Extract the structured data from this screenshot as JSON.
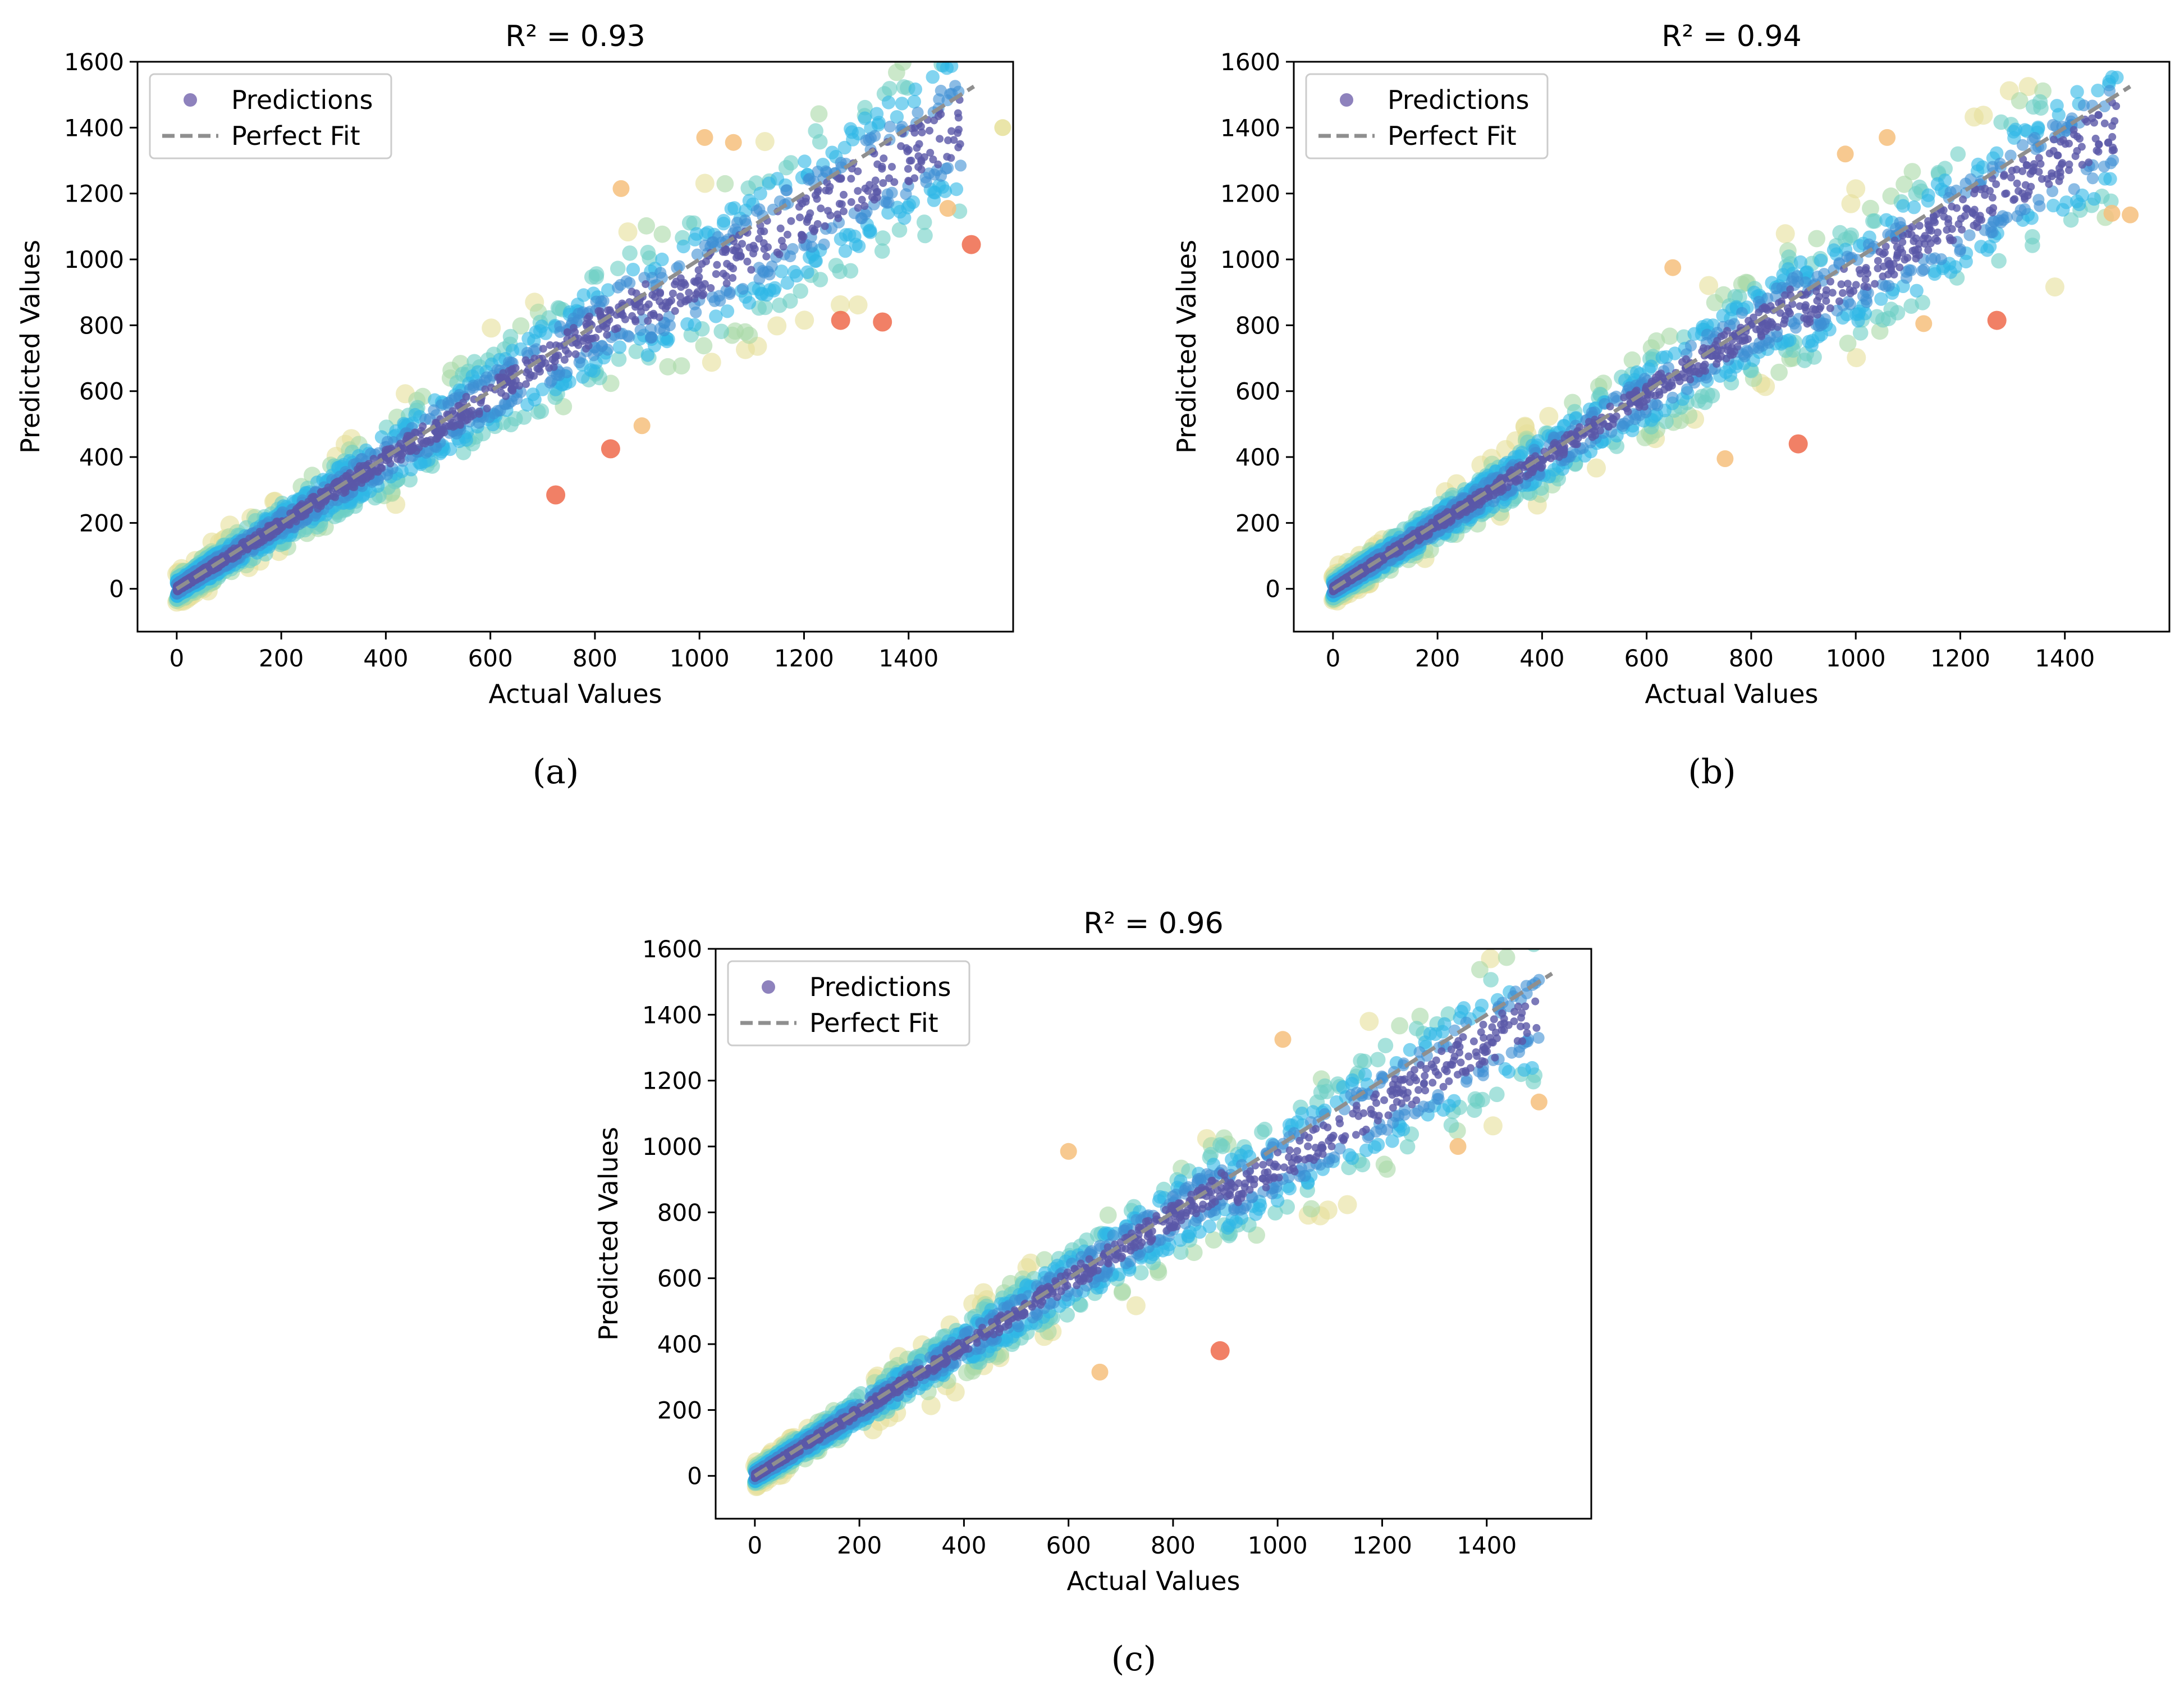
{
  "figure": {
    "caption_a": "(a)",
    "caption_b": "(b)",
    "caption_c": "(c)"
  },
  "chart_data": [
    {
      "id": "a",
      "type": "scatter",
      "title": "R² = 0.93",
      "r2": 0.93,
      "xlabel": "Actual Values",
      "ylabel": "Predicted Values",
      "xlim": [
        -75,
        1600
      ],
      "ylim": [
        -130,
        1600
      ],
      "xticks": [
        0,
        200,
        400,
        600,
        800,
        1000,
        1200,
        1400
      ],
      "yticks": [
        0,
        200,
        400,
        600,
        800,
        1000,
        1200,
        1400,
        1600
      ],
      "legend": [
        "Predictions",
        "Perfect Fit"
      ],
      "legend_position": "top-left",
      "fit_line": {
        "x": [
          0,
          1525
        ],
        "y": [
          0,
          1525
        ]
      },
      "outliers": [
        {
          "x": 1520,
          "y": 1045
        },
        {
          "x": 1350,
          "y": 810
        },
        {
          "x": 1270,
          "y": 815
        },
        {
          "x": 725,
          "y": 285
        },
        {
          "x": 890,
          "y": 495
        },
        {
          "x": 830,
          "y": 425
        },
        {
          "x": 1010,
          "y": 1370
        },
        {
          "x": 1065,
          "y": 1355
        },
        {
          "x": 1475,
          "y": 1155
        },
        {
          "x": 850,
          "y": 1215
        },
        {
          "x": 1580,
          "y": 1400
        }
      ]
    },
    {
      "id": "b",
      "type": "scatter",
      "title": "R² = 0.94",
      "r2": 0.94,
      "xlabel": "Actual Values",
      "ylabel": "Predicted Values",
      "xlim": [
        -75,
        1600
      ],
      "ylim": [
        -130,
        1600
      ],
      "xticks": [
        0,
        200,
        400,
        600,
        800,
        1000,
        1200,
        1400
      ],
      "yticks": [
        0,
        200,
        400,
        600,
        800,
        1000,
        1200,
        1400,
        1600
      ],
      "legend": [
        "Predictions",
        "Perfect Fit"
      ],
      "legend_position": "top-left",
      "fit_line": {
        "x": [
          0,
          1525
        ],
        "y": [
          0,
          1525
        ]
      },
      "outliers": [
        {
          "x": 1525,
          "y": 1135
        },
        {
          "x": 1270,
          "y": 815
        },
        {
          "x": 890,
          "y": 440
        },
        {
          "x": 750,
          "y": 395
        },
        {
          "x": 1490,
          "y": 1140
        },
        {
          "x": 1130,
          "y": 805
        },
        {
          "x": 650,
          "y": 975
        },
        {
          "x": 980,
          "y": 1320
        },
        {
          "x": 1060,
          "y": 1370
        }
      ]
    },
    {
      "id": "c",
      "type": "scatter",
      "title": "R² = 0.96",
      "r2": 0.96,
      "xlabel": "Actual Values",
      "ylabel": "Predicted Values",
      "xlim": [
        -75,
        1600
      ],
      "ylim": [
        -130,
        1600
      ],
      "xticks": [
        0,
        200,
        400,
        600,
        800,
        1000,
        1200,
        1400
      ],
      "yticks": [
        0,
        200,
        400,
        600,
        800,
        1000,
        1200,
        1400,
        1600
      ],
      "legend": [
        "Predictions",
        "Perfect Fit"
      ],
      "legend_position": "top-left",
      "fit_line": {
        "x": [
          0,
          1525
        ],
        "y": [
          0,
          1525
        ]
      },
      "outliers": [
        {
          "x": 890,
          "y": 380
        },
        {
          "x": 600,
          "y": 985
        },
        {
          "x": 1500,
          "y": 1135
        },
        {
          "x": 660,
          "y": 315
        },
        {
          "x": 1345,
          "y": 1000
        },
        {
          "x": 1010,
          "y": 1325
        }
      ]
    }
  ],
  "colors": {
    "predictions_legend": "#8e82bd",
    "fit_line": "#8f8f8f",
    "core": "#5a57a8",
    "band1": "#3d8fd3",
    "band2": "#2eb8e6",
    "band3": "#6ccfc4",
    "band4": "#a8d9a6",
    "band5": "#e6e09a",
    "band6": "#f6bf7c",
    "band7": "#ef6a4b"
  }
}
